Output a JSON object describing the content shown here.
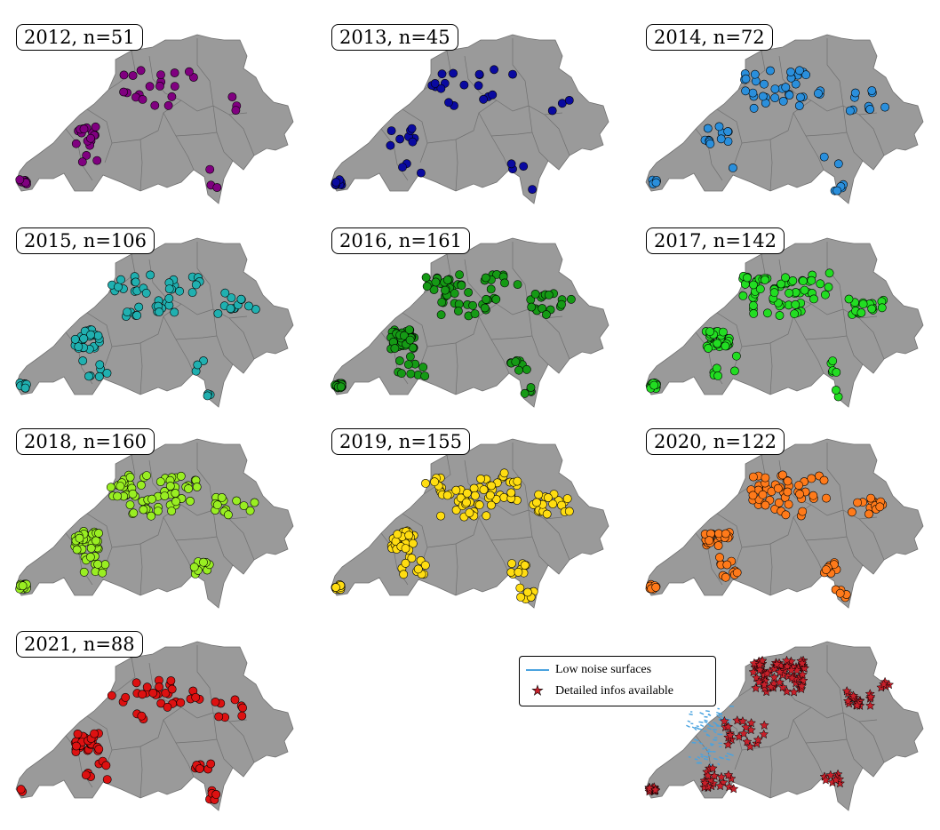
{
  "colors": {
    "map_fill": "#9a9a9a",
    "map_stroke": "#707070",
    "point_stroke": "#000000",
    "low_noise": "#4aa3df",
    "star": "#c8202a"
  },
  "panels": [
    {
      "label": "2012, n=51",
      "color": "#800080"
    },
    {
      "label": "2013, n=45",
      "color": "#0a0aa0"
    },
    {
      "label": "2014, n=72",
      "color": "#2a8fdc"
    },
    {
      "label": "2015, n=106",
      "color": "#20b0b0"
    },
    {
      "label": "2016, n=161",
      "color": "#159a15"
    },
    {
      "label": "2017, n=142",
      "color": "#22dd22"
    },
    {
      "label": "2018, n=160",
      "color": "#99ee22"
    },
    {
      "label": "2019, n=155",
      "color": "#ffdd11"
    },
    {
      "label": "2020, n=122",
      "color": "#ff7a1a"
    },
    {
      "label": "2021, n=88",
      "color": "#dd1111"
    }
  ],
  "legend": {
    "low_noise_label": "Low noise surfaces",
    "detailed_label": "Detailed infos available"
  }
}
